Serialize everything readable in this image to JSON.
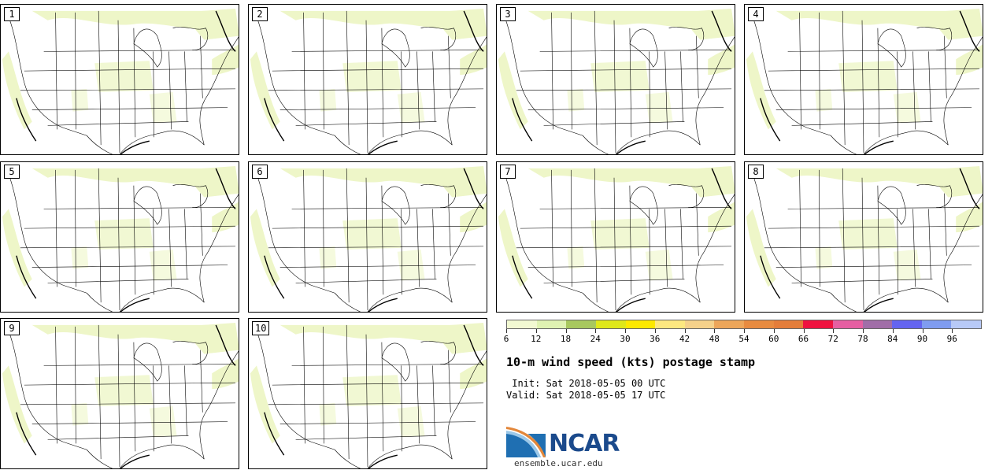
{
  "members": [
    "1",
    "2",
    "3",
    "4",
    "5",
    "6",
    "7",
    "8",
    "9",
    "10"
  ],
  "colorbar": {
    "colors": [
      "#f2f9d2",
      "#dff2b2",
      "#a8c85e",
      "#dfe81a",
      "#fde900",
      "#fde880",
      "#f5d18a",
      "#eda65a",
      "#e88b40",
      "#e47d3a",
      "#ef123f",
      "#e65fa2",
      "#a16ea8",
      "#6464f0",
      "#7f9cf0",
      "#b7c9f7"
    ],
    "tick_labels": [
      "6",
      "12",
      "18",
      "24",
      "30",
      "36",
      "42",
      "48",
      "54",
      "60",
      "66",
      "72",
      "78",
      "84",
      "90",
      "96"
    ]
  },
  "title": "10-m wind speed (kts) postage stamp",
  "init_line": " Init: Sat 2018-05-05 00 UTC",
  "valid_line": "Valid: Sat 2018-05-05 17 UTC",
  "logo_text": "NCAR",
  "footer": "ensemble.ucar.edu"
}
